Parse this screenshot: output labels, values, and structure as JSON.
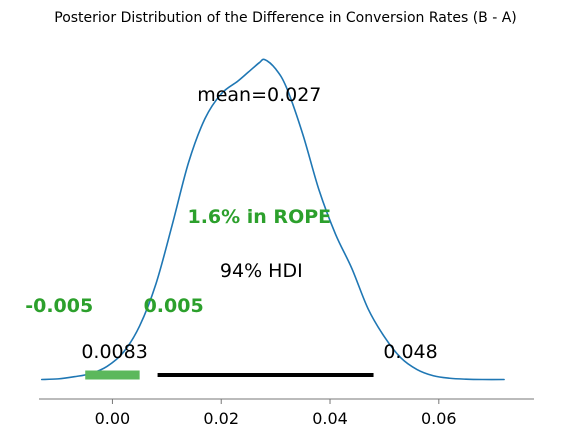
{
  "chart_data": {
    "type": "line",
    "title": "Posterior Distribution of the Difference in Conversion Rates (B - A)",
    "xlabel": "",
    "ylabel": "",
    "xlim": [
      -0.0135,
      0.0775
    ],
    "ylim": [
      -0.005,
      1.08
    ],
    "grid": false,
    "legend": "none",
    "series": [
      {
        "name": "",
        "color": "#1f77b4",
        "x": [
          -0.013,
          -0.01,
          -0.007,
          -0.004,
          -0.001,
          0.002,
          0.005,
          0.008,
          0.011,
          0.014,
          0.017,
          0.02,
          0.023,
          0.025,
          0.027,
          0.028,
          0.03,
          0.032,
          0.035,
          0.038,
          0.041,
          0.044,
          0.047,
          0.05,
          0.053,
          0.056,
          0.059,
          0.062,
          0.065,
          0.068,
          0.072
        ],
        "y": [
          0.003,
          0.005,
          0.012,
          0.022,
          0.045,
          0.09,
          0.175,
          0.31,
          0.5,
          0.7,
          0.84,
          0.92,
          0.96,
          0.99,
          1.02,
          1.03,
          1.0,
          0.94,
          0.79,
          0.61,
          0.47,
          0.36,
          0.23,
          0.14,
          0.073,
          0.035,
          0.015,
          0.007,
          0.004,
          0.003,
          0.003
        ]
      }
    ],
    "x_ticks": [
      {
        "value": 0.0,
        "label": "0.00"
      },
      {
        "value": 0.02,
        "label": "0.02"
      },
      {
        "value": 0.04,
        "label": "0.04"
      },
      {
        "value": 0.06,
        "label": "0.06"
      }
    ],
    "hdi": {
      "label": "94% HDI",
      "lower": 0.0083,
      "upper": 0.048,
      "lower_label": "0.0083",
      "upper_label": "0.048",
      "color": "#000000"
    },
    "rope": {
      "lower": -0.005,
      "upper": 0.005,
      "lower_label": "-0.005",
      "upper_label": "0.005",
      "label": "1.6% in ROPE",
      "percent": 1.6,
      "color": "#2ca02c",
      "bar_color": "#5cb85c"
    },
    "mean": {
      "value": 0.027,
      "label": "mean=0.027"
    }
  }
}
